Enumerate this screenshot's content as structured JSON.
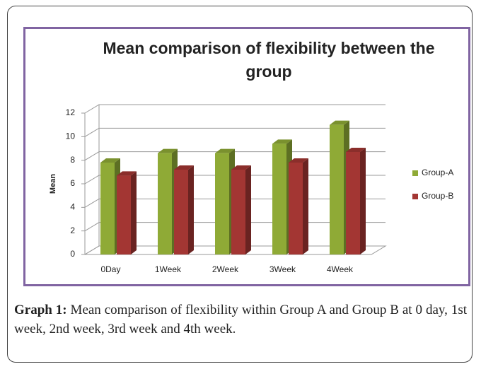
{
  "chart_data": {
    "type": "bar3d",
    "title": "Mean comparison of flexibility between the group",
    "y_label": "Mean",
    "categories": [
      "0Day",
      "1Week",
      "2Week",
      "3Week",
      "4Week"
    ],
    "series": [
      {
        "name": "Group-A",
        "color": "#8faa36",
        "values": [
          7.8,
          8.6,
          8.6,
          9.4,
          11.0
        ]
      },
      {
        "name": "Group-B",
        "color": "#a33633",
        "values": [
          6.7,
          7.2,
          7.2,
          7.8,
          8.7
        ]
      }
    ],
    "ylim": [
      0,
      12
    ],
    "yticks": [
      0,
      2,
      4,
      6,
      8,
      10,
      12
    ],
    "grid": true,
    "legend": "right"
  },
  "caption": {
    "label": "Graph 1:",
    "text": "Mean comparison of flexibility within Group A and Group B at 0 day, 1st week, 2nd week, 3rd week and 4th week."
  }
}
